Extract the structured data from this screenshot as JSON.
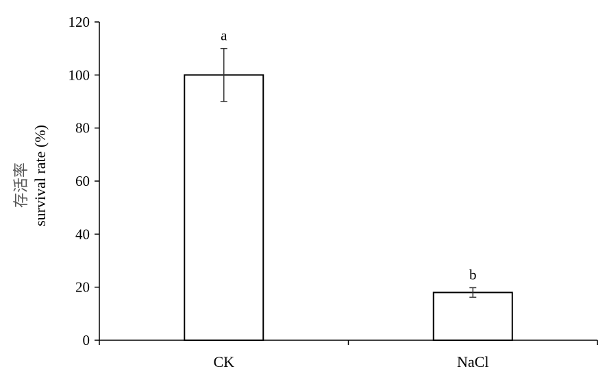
{
  "chart_data": {
    "type": "bar",
    "title": "",
    "xlabel": "",
    "ylabel_cn": "存活率",
    "ylabel_en": "survival rate (%)",
    "categories": [
      "CK",
      "NaCl"
    ],
    "values": [
      100,
      18
    ],
    "errors": [
      10,
      1.8
    ],
    "significance": [
      "a",
      "b"
    ],
    "ylim": [
      0,
      120
    ],
    "yticks": [
      0,
      20,
      40,
      60,
      80,
      100,
      120
    ],
    "ytick_labels": [
      "0",
      "20",
      "40",
      "60",
      "80",
      "100",
      "120"
    ],
    "grid": false,
    "legend": "none"
  }
}
